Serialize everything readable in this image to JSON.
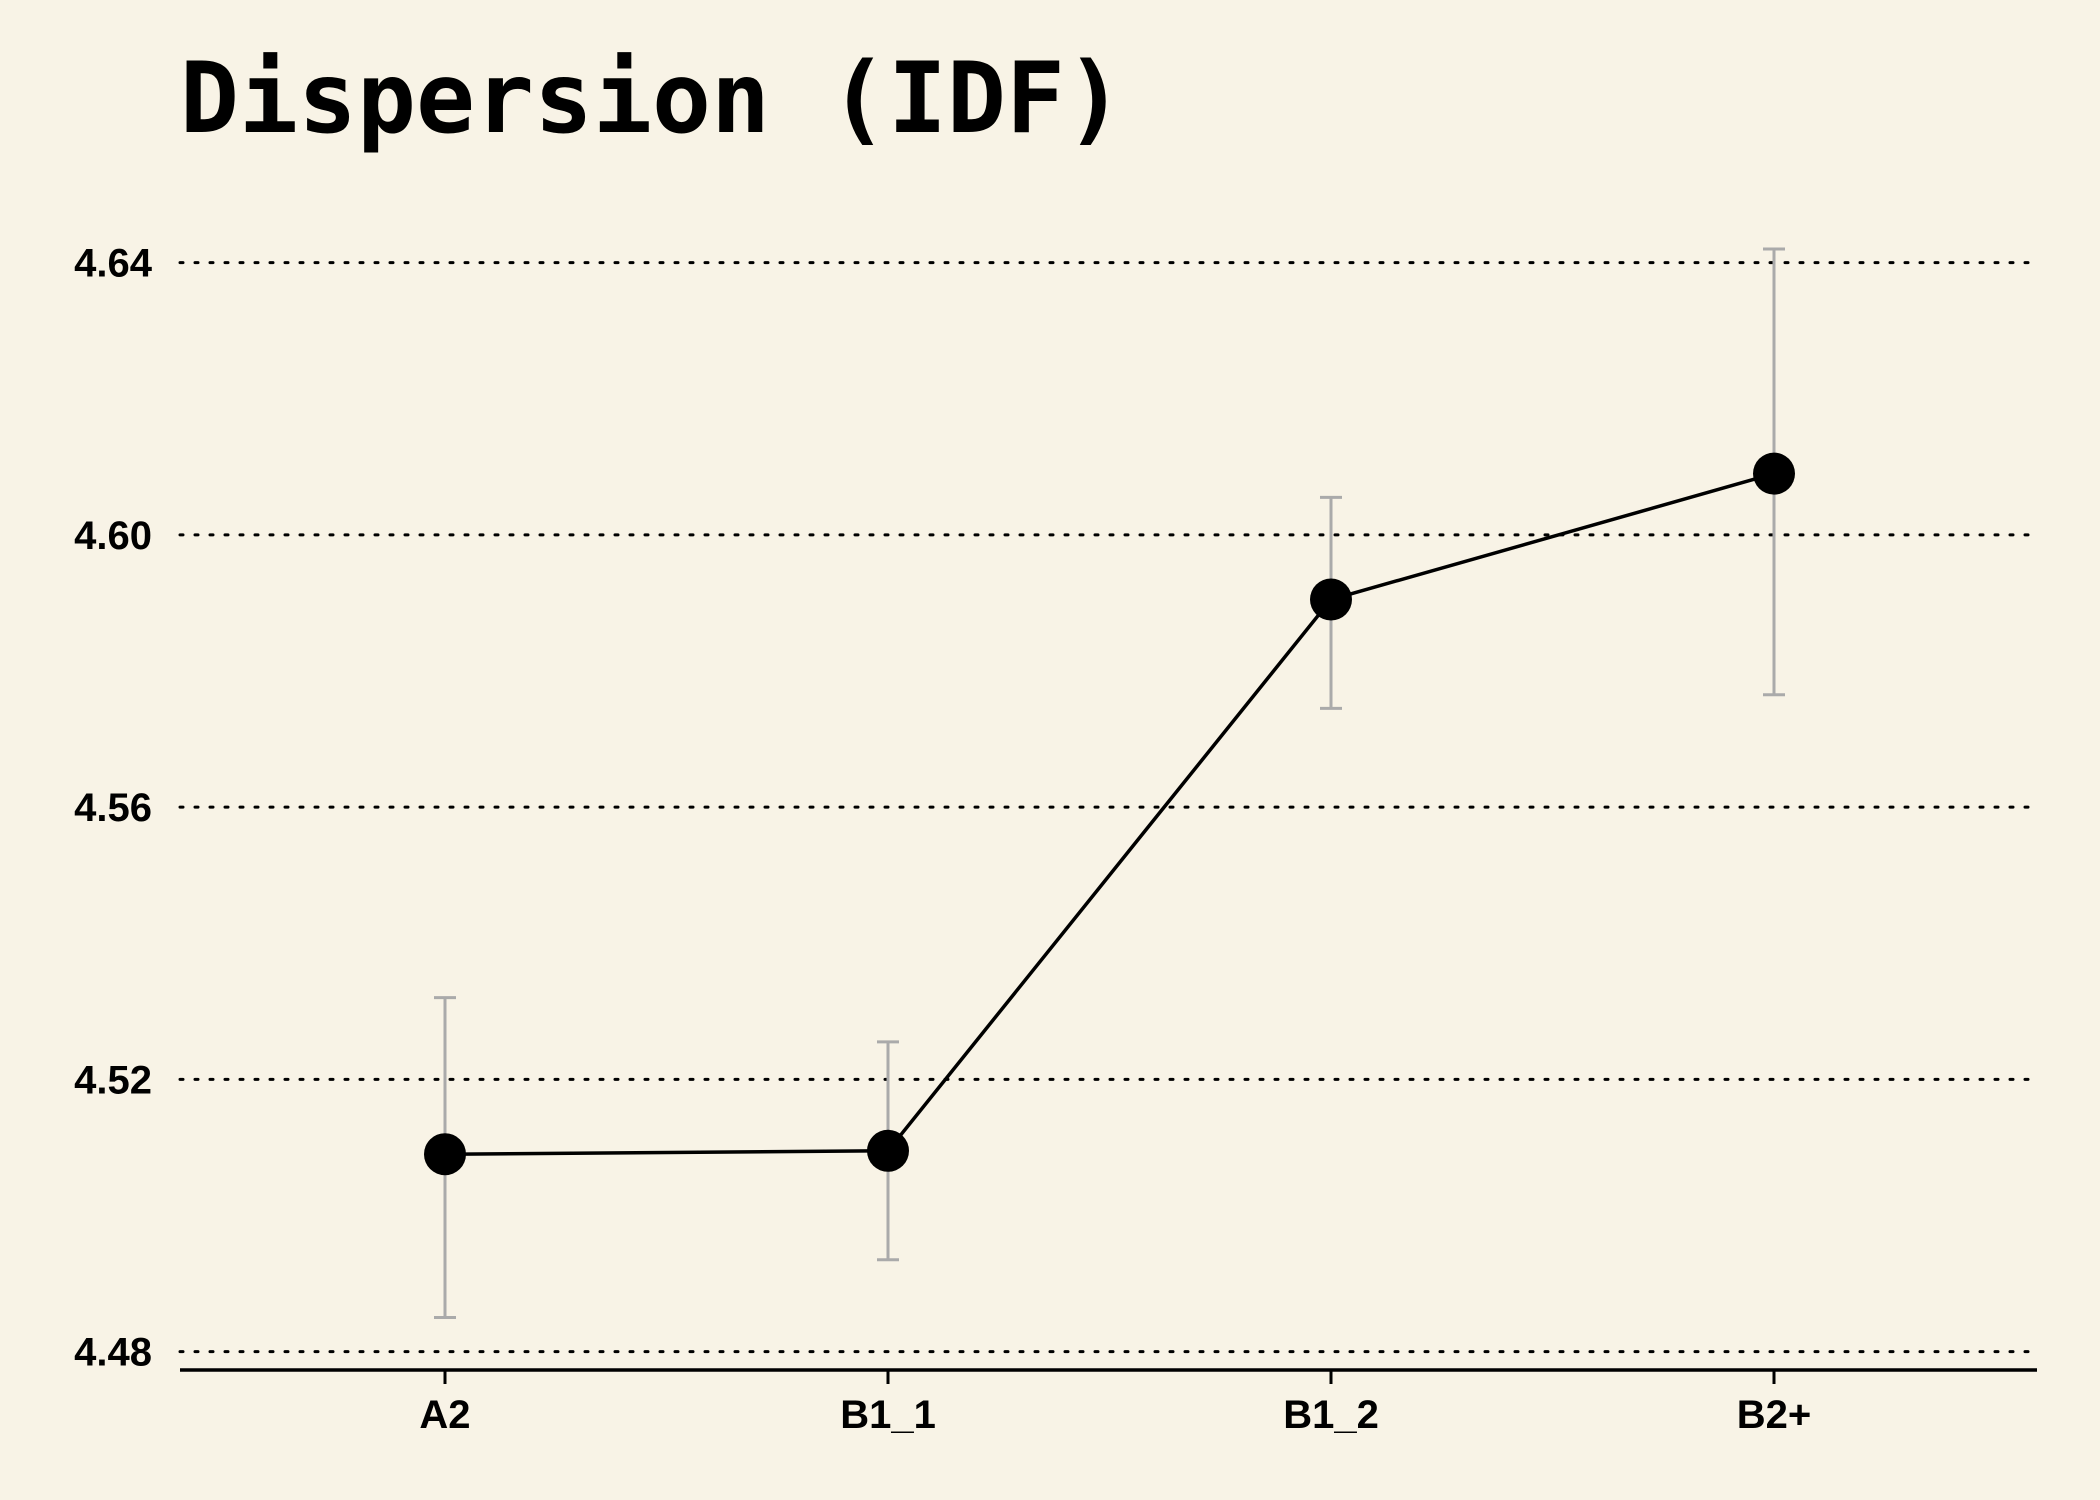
{
  "chart_data": {
    "type": "line",
    "title": "Dispersion (IDF)",
    "xlabel": "",
    "ylabel": "",
    "categories": [
      "A2",
      "B1_1",
      "B1_2",
      "B2+"
    ],
    "series": [
      {
        "values": [
          4.509,
          4.5095,
          4.5905,
          4.609
        ],
        "error_low": [
          4.485,
          4.4935,
          4.5745,
          4.5765
        ],
        "error_high": [
          4.532,
          4.5255,
          4.6055,
          4.642
        ]
      }
    ],
    "ylim": [
      4.477,
      4.6445
    ],
    "yticks": [
      4.48,
      4.52,
      4.56,
      4.6,
      4.64
    ],
    "ytick_labels": [
      "4.48",
      "4.52",
      "4.56",
      "4.60",
      "4.64"
    ],
    "grid": "horizontal dotted",
    "legend": "none",
    "colors": {
      "background": "#f8f3e6",
      "line": "#000000",
      "marker": "#000000",
      "error_bar": "#aaaaaa",
      "grid": "#000000"
    }
  }
}
